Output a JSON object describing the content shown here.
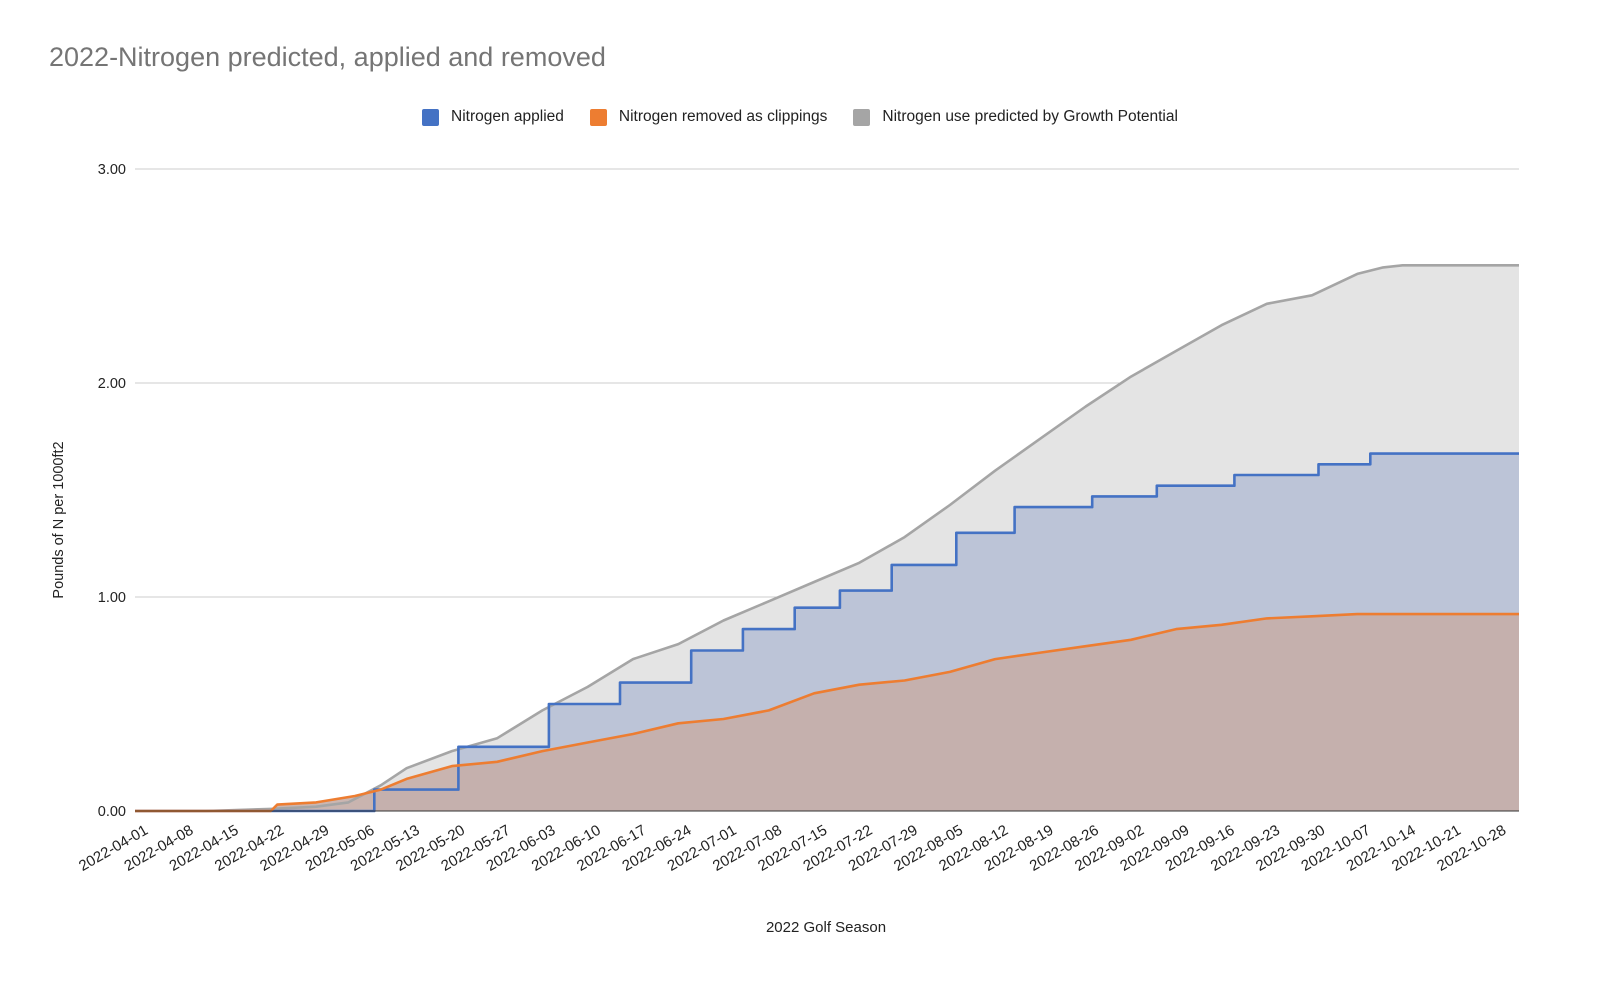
{
  "chart_data": {
    "type": "area",
    "title": "2022-Nitrogen predicted, applied and removed",
    "xlabel": "2022 Golf Season",
    "ylabel": "Pounds of N per 1000ft2",
    "ylim": [
      0,
      3
    ],
    "yticks": [
      "0.00",
      "1.00",
      "2.00",
      "3.00"
    ],
    "x_start": "2022-04-01",
    "x_end": "2022-11-01",
    "categories": [
      "2022-04-01",
      "2022-04-08",
      "2022-04-15",
      "2022-04-22",
      "2022-04-29",
      "2022-05-06",
      "2022-05-13",
      "2022-05-20",
      "2022-05-27",
      "2022-06-03",
      "2022-06-10",
      "2022-06-17",
      "2022-06-24",
      "2022-07-01",
      "2022-07-08",
      "2022-07-15",
      "2022-07-22",
      "2022-07-29",
      "2022-08-05",
      "2022-08-12",
      "2022-08-19",
      "2022-08-26",
      "2022-09-02",
      "2022-09-09",
      "2022-09-16",
      "2022-09-23",
      "2022-09-30",
      "2022-10-07",
      "2022-10-14",
      "2022-10-21",
      "2022-10-28"
    ],
    "grid": true,
    "legend_position": "top",
    "series": [
      {
        "name": "Nitrogen applied",
        "color": "#4472c4",
        "fill": "#b7c0d5",
        "step": true,
        "points": [
          [
            "2022-04-01",
            0
          ],
          [
            "2022-05-08",
            0.1
          ],
          [
            "2022-05-21",
            0.3
          ],
          [
            "2022-06-04",
            0.5
          ],
          [
            "2022-06-15",
            0.6
          ],
          [
            "2022-06-26",
            0.75
          ],
          [
            "2022-07-04",
            0.85
          ],
          [
            "2022-07-12",
            0.95
          ],
          [
            "2022-07-19",
            1.03
          ],
          [
            "2022-07-27",
            1.15
          ],
          [
            "2022-08-06",
            1.3
          ],
          [
            "2022-08-15",
            1.42
          ],
          [
            "2022-08-27",
            1.47
          ],
          [
            "2022-09-06",
            1.52
          ],
          [
            "2022-09-18",
            1.57
          ],
          [
            "2022-10-01",
            1.62
          ],
          [
            "2022-10-09",
            1.67
          ],
          [
            "2022-11-01",
            1.67
          ]
        ]
      },
      {
        "name": "Nitrogen removed as clippings",
        "color": "#ed7d31",
        "fill": "#c5aea8",
        "step": false,
        "points": [
          [
            "2022-04-01",
            0
          ],
          [
            "2022-04-22",
            0.0
          ],
          [
            "2022-04-23",
            0.03
          ],
          [
            "2022-04-29",
            0.04
          ],
          [
            "2022-05-05",
            0.07
          ],
          [
            "2022-05-09",
            0.1
          ],
          [
            "2022-05-13",
            0.15
          ],
          [
            "2022-05-20",
            0.21
          ],
          [
            "2022-05-27",
            0.23
          ],
          [
            "2022-06-03",
            0.28
          ],
          [
            "2022-06-10",
            0.32
          ],
          [
            "2022-06-17",
            0.36
          ],
          [
            "2022-06-24",
            0.41
          ],
          [
            "2022-07-01",
            0.43
          ],
          [
            "2022-07-08",
            0.47
          ],
          [
            "2022-07-15",
            0.55
          ],
          [
            "2022-07-22",
            0.59
          ],
          [
            "2022-07-29",
            0.61
          ],
          [
            "2022-08-05",
            0.65
          ],
          [
            "2022-08-12",
            0.71
          ],
          [
            "2022-08-19",
            0.74
          ],
          [
            "2022-08-26",
            0.77
          ],
          [
            "2022-09-02",
            0.8
          ],
          [
            "2022-09-09",
            0.85
          ],
          [
            "2022-09-16",
            0.87
          ],
          [
            "2022-09-23",
            0.9
          ],
          [
            "2022-09-30",
            0.91
          ],
          [
            "2022-10-07",
            0.92
          ],
          [
            "2022-10-14",
            0.92
          ],
          [
            "2022-11-01",
            0.92
          ]
        ]
      },
      {
        "name": "Nitrogen use predicted by Growth Potential",
        "color": "#a5a5a5",
        "fill": "#e4e4e4",
        "step": false,
        "points": [
          [
            "2022-04-01",
            0
          ],
          [
            "2022-04-12",
            0.0
          ],
          [
            "2022-04-22",
            0.01
          ],
          [
            "2022-04-29",
            0.02
          ],
          [
            "2022-05-04",
            0.04
          ],
          [
            "2022-05-09",
            0.12
          ],
          [
            "2022-05-13",
            0.2
          ],
          [
            "2022-05-20",
            0.28
          ],
          [
            "2022-05-27",
            0.34
          ],
          [
            "2022-06-03",
            0.47
          ],
          [
            "2022-06-10",
            0.58
          ],
          [
            "2022-06-17",
            0.71
          ],
          [
            "2022-06-24",
            0.78
          ],
          [
            "2022-07-01",
            0.89
          ],
          [
            "2022-07-08",
            0.98
          ],
          [
            "2022-07-15",
            1.07
          ],
          [
            "2022-07-22",
            1.16
          ],
          [
            "2022-07-29",
            1.28
          ],
          [
            "2022-08-05",
            1.43
          ],
          [
            "2022-08-12",
            1.59
          ],
          [
            "2022-08-19",
            1.74
          ],
          [
            "2022-08-26",
            1.89
          ],
          [
            "2022-09-02",
            2.03
          ],
          [
            "2022-09-09",
            2.15
          ],
          [
            "2022-09-16",
            2.27
          ],
          [
            "2022-09-23",
            2.37
          ],
          [
            "2022-09-30",
            2.41
          ],
          [
            "2022-10-07",
            2.51
          ],
          [
            "2022-10-11",
            2.54
          ],
          [
            "2022-10-14",
            2.55
          ],
          [
            "2022-11-01",
            2.55
          ]
        ]
      }
    ],
    "legend_order": [
      "Nitrogen applied",
      "Nitrogen removed as clippings",
      "Nitrogen use predicted by Growth Potential"
    ]
  }
}
